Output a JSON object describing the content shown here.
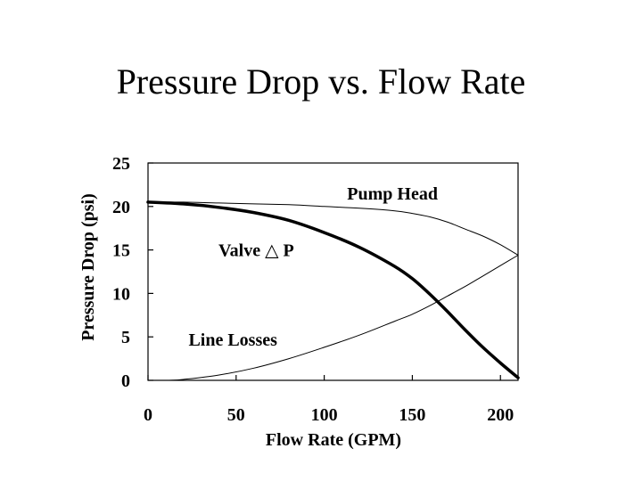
{
  "title": "Pressure Drop vs. Flow Rate",
  "chart_data": {
    "type": "line",
    "title": "Pressure Drop vs. Flow Rate",
    "xlabel": "Flow Rate (GPM)",
    "ylabel": "Pressure Drop (psi)",
    "xlim": [
      0,
      210
    ],
    "ylim": [
      0,
      25
    ],
    "xticks": [
      0,
      50,
      100,
      150,
      200
    ],
    "yticks": [
      0,
      5,
      10,
      15,
      20,
      25
    ],
    "grid": false,
    "series": [
      {
        "name": "Pump Head",
        "label": "Pump Head",
        "stroke": "#000000",
        "weight": "thin",
        "x": [
          0,
          20,
          40,
          60,
          80,
          100,
          120,
          140,
          150,
          160,
          170,
          180,
          190,
          200,
          210
        ],
        "y": [
          20.5,
          20.5,
          20.4,
          20.3,
          20.2,
          20.0,
          19.8,
          19.5,
          19.2,
          18.8,
          18.2,
          17.4,
          16.6,
          15.6,
          14.4
        ]
      },
      {
        "name": "Valve ΔP",
        "label": "Valve △ P",
        "stroke": "#000000",
        "weight": "thick",
        "x": [
          0,
          20,
          40,
          60,
          80,
          100,
          120,
          140,
          150,
          160,
          170,
          180,
          190,
          200,
          210
        ],
        "y": [
          20.5,
          20.3,
          19.9,
          19.3,
          18.4,
          17.0,
          15.3,
          13.1,
          11.7,
          9.9,
          7.9,
          5.8,
          3.8,
          2.0,
          0.3
        ]
      },
      {
        "name": "Line Losses",
        "label": "Line Losses",
        "stroke": "#000000",
        "weight": "thin",
        "x": [
          12,
          20,
          40,
          60,
          80,
          100,
          120,
          140,
          150,
          160,
          170,
          180,
          190,
          200,
          210
        ],
        "y": [
          0,
          0.1,
          0.6,
          1.4,
          2.5,
          3.8,
          5.2,
          6.8,
          7.6,
          8.6,
          9.7,
          10.8,
          12.0,
          13.2,
          14.4
        ]
      }
    ],
    "annotations": [
      {
        "text": "Pump Head",
        "x": 113,
        "y": 21.5
      },
      {
        "text": "Valve △ P",
        "x": 40,
        "y": 15.0
      },
      {
        "text": "Line Losses",
        "x": 23,
        "y": 4.7
      }
    ]
  }
}
